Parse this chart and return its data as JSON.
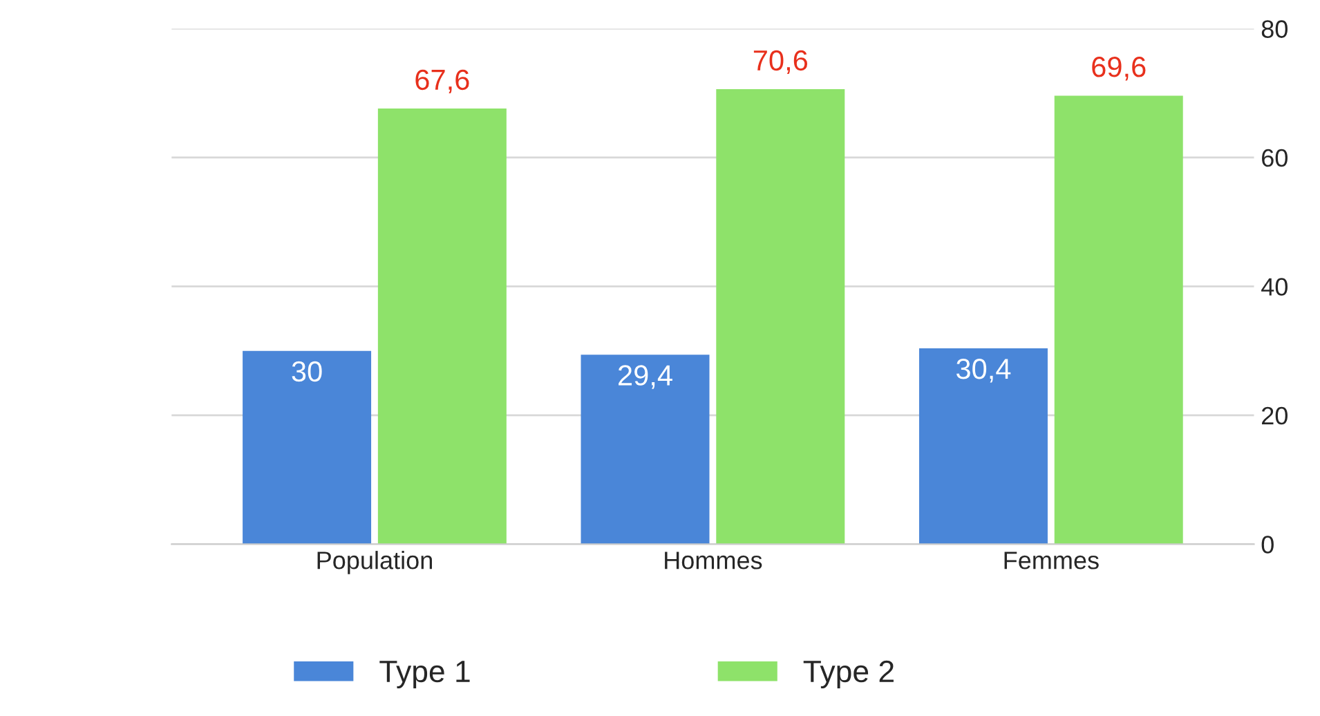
{
  "chart_data": {
    "type": "bar",
    "categories": [
      "Population",
      "Hommes",
      "Femmes"
    ],
    "series": [
      {
        "name": "Type 1",
        "color": "#4a86d8",
        "values": [
          30,
          29.4,
          30.4
        ],
        "value_labels": [
          "30",
          "29,4",
          "30,4"
        ]
      },
      {
        "name": "Type 2",
        "color": "#8ee26a",
        "values": [
          67.6,
          70.6,
          69.6
        ],
        "value_labels": [
          "67,6",
          "70,6",
          "69,6"
        ]
      }
    ],
    "ylim": [
      0,
      80
    ],
    "yticks": [
      0,
      20,
      40,
      60,
      80
    ],
    "grid": "y",
    "legend": "bottom"
  }
}
